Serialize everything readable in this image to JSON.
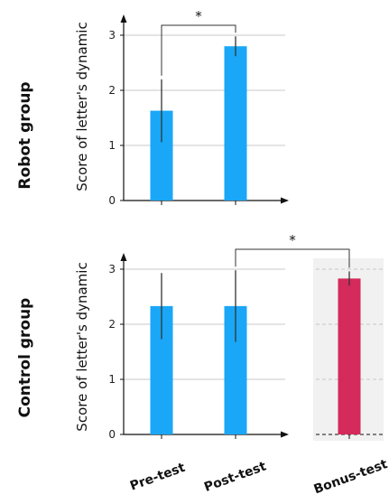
{
  "chart_data": [
    {
      "type": "bar",
      "row_label": "Robot group",
      "ylabel": "Score of letter's dynamic",
      "ylim": [
        0,
        3.2
      ],
      "yticks": [
        "0",
        "1",
        "2",
        "3"
      ],
      "grid": true,
      "categories": [
        "Pre-test",
        "Post-test"
      ],
      "values": [
        1.63,
        2.8
      ],
      "errors": [
        0.57,
        0.18
      ],
      "significance": [
        {
          "from": "Pre-test",
          "to": "Post-test",
          "label": "*"
        }
      ],
      "colors": [
        "#1aa7f7",
        "#1aa7f7"
      ]
    },
    {
      "type": "bar",
      "row_label": "Control group",
      "ylabel": "Score of letter's dynamic",
      "ylim": [
        0,
        3.2
      ],
      "yticks": [
        "0",
        "1",
        "2",
        "3"
      ],
      "grid": true,
      "categories": [
        "Pre-test",
        "Post-test",
        "Bonus-test"
      ],
      "values": [
        2.33,
        2.33,
        2.83
      ],
      "errors": [
        0.6,
        0.65,
        0.13
      ],
      "significance": [
        {
          "from": "Post-test",
          "to": "Bonus-test",
          "label": "*"
        }
      ],
      "colors": [
        "#1aa7f7",
        "#1aa7f7",
        "#d42a5c"
      ]
    }
  ]
}
